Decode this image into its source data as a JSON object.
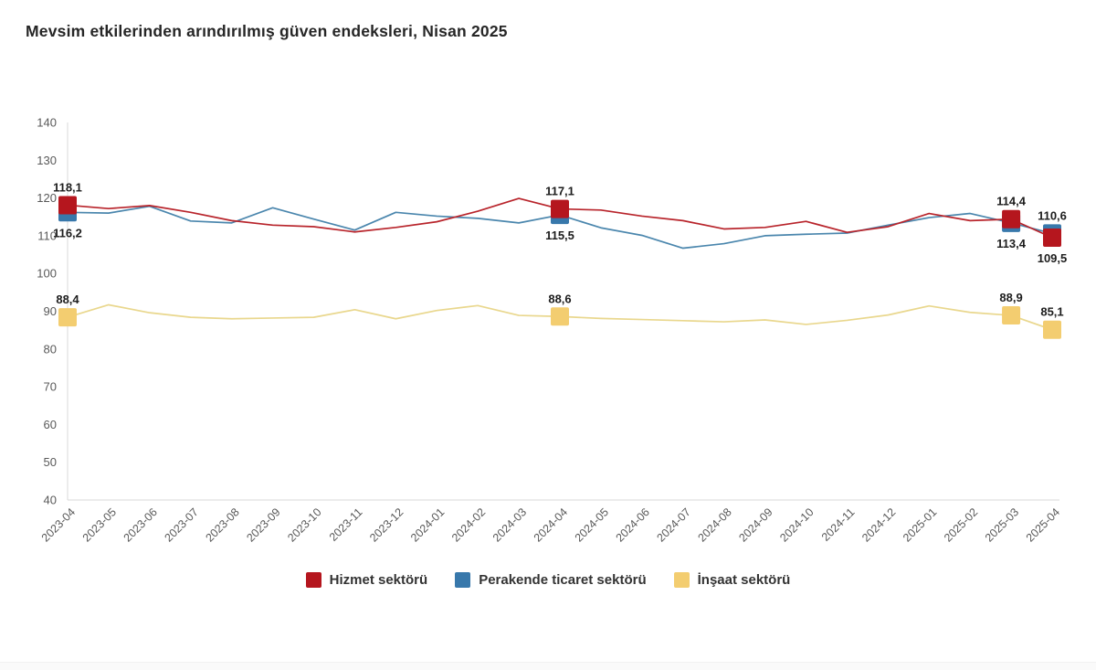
{
  "page": {
    "title": "Mevsim etkilerinden arındırılmış güven endeksleri, Nisan 2025"
  },
  "chart_data": {
    "type": "line",
    "title": "Mevsim etkilerinden arındırılmış güven endeksleri, Nisan 2025",
    "xlabel": "",
    "ylabel": "",
    "ylim": [
      40,
      140
    ],
    "ytick_step": 10,
    "grid": false,
    "legend_position": "bottom",
    "decimal_separator": "comma",
    "axis_color": "#d8d8d8",
    "categories": [
      "2023-04",
      "2023-05",
      "2023-06",
      "2023-07",
      "2023-08",
      "2023-09",
      "2023-10",
      "2023-11",
      "2023-12",
      "2024-01",
      "2024-02",
      "2024-03",
      "2024-04",
      "2024-05",
      "2024-06",
      "2024-07",
      "2024-08",
      "2024-09",
      "2024-10",
      "2024-11",
      "2024-12",
      "2025-01",
      "2025-02",
      "2025-03",
      "2025-04"
    ],
    "marker_indices": [
      0,
      12,
      23,
      24
    ],
    "series": [
      {
        "name": "İnşaat sektörü",
        "color": "#f3cd70",
        "line_color": "#e9d78d",
        "values": [
          88.4,
          91.7,
          89.6,
          88.4,
          88.0,
          88.2,
          88.4,
          90.4,
          88.0,
          90.2,
          91.5,
          88.9,
          88.6,
          88.1,
          87.8,
          87.5,
          87.2,
          87.7,
          86.5,
          87.6,
          89.0,
          91.4,
          89.7,
          88.9,
          85.1
        ],
        "annotations": [
          {
            "index": 0,
            "text": "88,4",
            "pos": "above"
          },
          {
            "index": 12,
            "text": "88,6",
            "pos": "above"
          },
          {
            "index": 23,
            "text": "88,9",
            "pos": "above"
          },
          {
            "index": 24,
            "text": "85,1",
            "pos": "above"
          }
        ]
      },
      {
        "name": "Perakende ticaret sektörü",
        "color": "#3878ab",
        "line_color": "#4a86ad",
        "values": [
          116.2,
          116.0,
          117.8,
          113.9,
          113.4,
          117.4,
          114.4,
          111.5,
          116.2,
          115.2,
          114.6,
          113.4,
          115.5,
          112.1,
          110.1,
          106.7,
          107.9,
          110.0,
          110.4,
          110.7,
          112.8,
          114.8,
          115.9,
          113.4,
          110.6
        ],
        "annotations": [
          {
            "index": 0,
            "text": "116,2",
            "pos": "below"
          },
          {
            "index": 12,
            "text": "115,5",
            "pos": "below"
          },
          {
            "index": 23,
            "text": "113,4",
            "pos": "below"
          },
          {
            "index": 24,
            "text": "110,6",
            "pos": "above"
          }
        ]
      },
      {
        "name": "Hizmet sektörü",
        "color": "#b5161e",
        "line_color": "#b8242b",
        "values": [
          118.1,
          117.2,
          118.0,
          116.2,
          114.0,
          112.8,
          112.4,
          111.0,
          112.2,
          113.7,
          116.5,
          119.9,
          117.1,
          116.8,
          115.2,
          114.0,
          111.8,
          112.2,
          113.8,
          110.9,
          112.4,
          115.9,
          114.0,
          114.4,
          109.5
        ],
        "annotations": [
          {
            "index": 0,
            "text": "118,1",
            "pos": "above"
          },
          {
            "index": 12,
            "text": "117,1",
            "pos": "above"
          },
          {
            "index": 23,
            "text": "114,4",
            "pos": "above"
          },
          {
            "index": 24,
            "text": "109,5",
            "pos": "below"
          }
        ]
      }
    ],
    "legend_order": [
      "Hizmet sektörü",
      "Perakende ticaret sektörü",
      "İnşaat sektörü"
    ]
  }
}
